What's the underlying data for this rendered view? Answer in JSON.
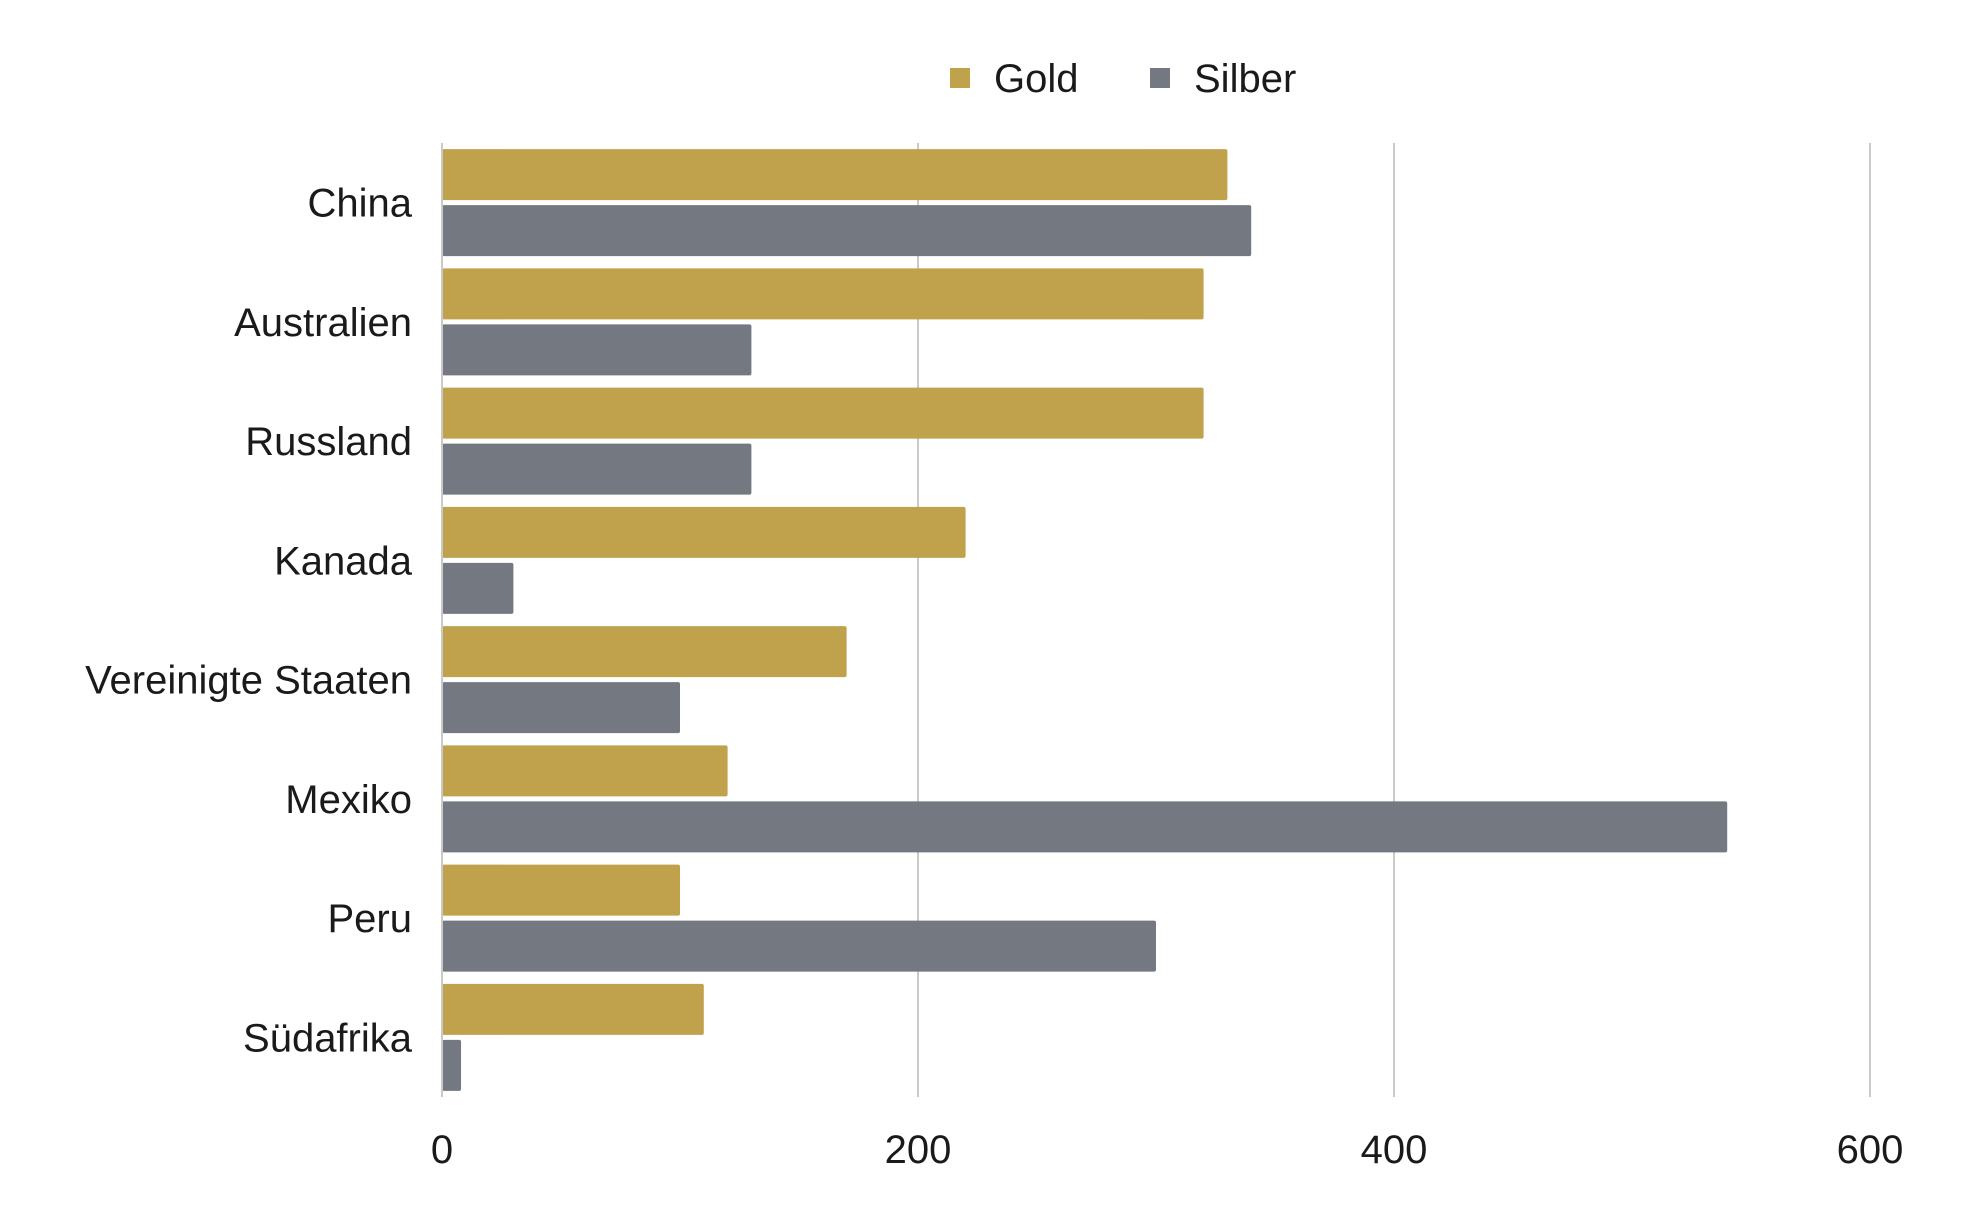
{
  "chart_data": {
    "type": "bar",
    "orientation": "horizontal",
    "categories": [
      "China",
      "Australien",
      "Russland",
      "Kanada",
      "Vereinigte Staaten",
      "Mexiko",
      "Peru",
      "Südafrika"
    ],
    "series": [
      {
        "name": "Gold",
        "color": "#bfa24b",
        "values": [
          330,
          320,
          320,
          220,
          170,
          120,
          100,
          110
        ]
      },
      {
        "name": "Silber",
        "color": "#737881",
        "values": [
          340,
          130,
          130,
          30,
          100,
          540,
          300,
          8
        ]
      }
    ],
    "xlim": [
      0,
      600
    ],
    "xticks": [
      0,
      200,
      400,
      600
    ],
    "xtick_labels": [
      "0",
      "200",
      "400",
      "600"
    ],
    "grid": true,
    "legend_position": "top-center",
    "title": "",
    "xlabel": "",
    "ylabel": ""
  }
}
